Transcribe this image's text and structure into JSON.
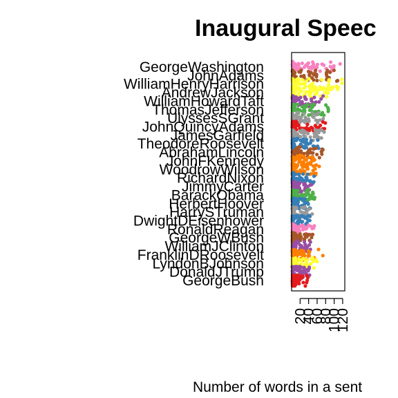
{
  "chart_data": {
    "type": "scatter",
    "title": "Inaugural Speec",
    "xlabel": "Number of words in a sent",
    "ylabel": "",
    "xlim": [
      0,
      125
    ],
    "x_ticks": [
      "20",
      "40",
      "60",
      "80",
      "100",
      "120"
    ],
    "grid": false,
    "legend": "none",
    "categories": [
      "GeorgeWashington",
      "JohnAdams",
      "WilliamHenryHarrison",
      "AndrewJackson",
      "WilliamHowardTaft",
      "ThomasJefferson",
      "UlyssesSGrant",
      "JohnQuincyAdams",
      "JamesGarfield",
      "TheodoreRoosevelt",
      "AbrahamLincoln",
      "JohnFKennedy",
      "WoodrowWilson",
      "RichardNixon",
      "JimmyCarter",
      "BarackObama",
      "HerbertHoover",
      "HarrySTruman",
      "DwightDEisenhower",
      "RonaldReagan",
      "GeorgeWBush",
      "WilliamJClinton",
      "FranklinDRoosevelt",
      "LyndonBJohnson",
      "DonaldJTrump",
      "GeorgeBush"
    ],
    "series": [
      {
        "category": "GeorgeWashington",
        "color": "#F781BF",
        "max": 115
      },
      {
        "category": "JohnAdams",
        "color": "#A65628",
        "max": 110
      },
      {
        "category": "WilliamHenryHarrison",
        "color": "#FFFF33",
        "max": 120
      },
      {
        "category": "AndrewJackson",
        "color": "#FFFF33",
        "max": 95
      },
      {
        "category": "WilliamHowardTaft",
        "color": "#984EA3",
        "max": 75
      },
      {
        "category": "ThomasJefferson",
        "color": "#4DAF4A",
        "max": 90
      },
      {
        "category": "UlyssesSGrant",
        "color": "#999999",
        "max": 75
      },
      {
        "category": "JohnQuincyAdams",
        "color": "#E41A1C",
        "max": 85
      },
      {
        "category": "JamesGarfield",
        "color": "#999999",
        "max": 80
      },
      {
        "category": "TheodoreRoosevelt",
        "color": "#377EB8",
        "max": 70
      },
      {
        "category": "AbrahamLincoln",
        "color": "#A65628",
        "max": 75
      },
      {
        "category": "JohnFKennedy",
        "color": "#FF7F00",
        "max": 65
      },
      {
        "category": "WoodrowWilson",
        "color": "#FF7F00",
        "max": 60
      },
      {
        "category": "RichardNixon",
        "color": "#377EB8",
        "max": 55
      },
      {
        "category": "JimmyCarter",
        "color": "#984EA3",
        "max": 50
      },
      {
        "category": "BarackObama",
        "color": "#4DAF4A",
        "max": 55
      },
      {
        "category": "HerbertHoover",
        "color": "#377EB8",
        "max": 45
      },
      {
        "category": "HarrySTruman",
        "color": "#999999",
        "max": 50
      },
      {
        "category": "DwightDEisenhower",
        "color": "#377EB8",
        "max": 45
      },
      {
        "category": "RonaldReagan",
        "color": "#F781BF",
        "max": 55
      },
      {
        "category": "GeorgeWBush",
        "color": "#A65628",
        "max": 50
      },
      {
        "category": "WilliamJClinton",
        "color": "#984EA3",
        "max": 45
      },
      {
        "category": "FranklinDRoosevelt",
        "color": "#FF7F00",
        "max": 75
      },
      {
        "category": "LyndonBJohnson",
        "color": "#FFFF33",
        "max": 60
      },
      {
        "category": "DonaldJTrump",
        "color": "#984EA3",
        "max": 45
      },
      {
        "category": "GeorgeBush",
        "color": "#E41A1C",
        "max": 40
      }
    ]
  }
}
